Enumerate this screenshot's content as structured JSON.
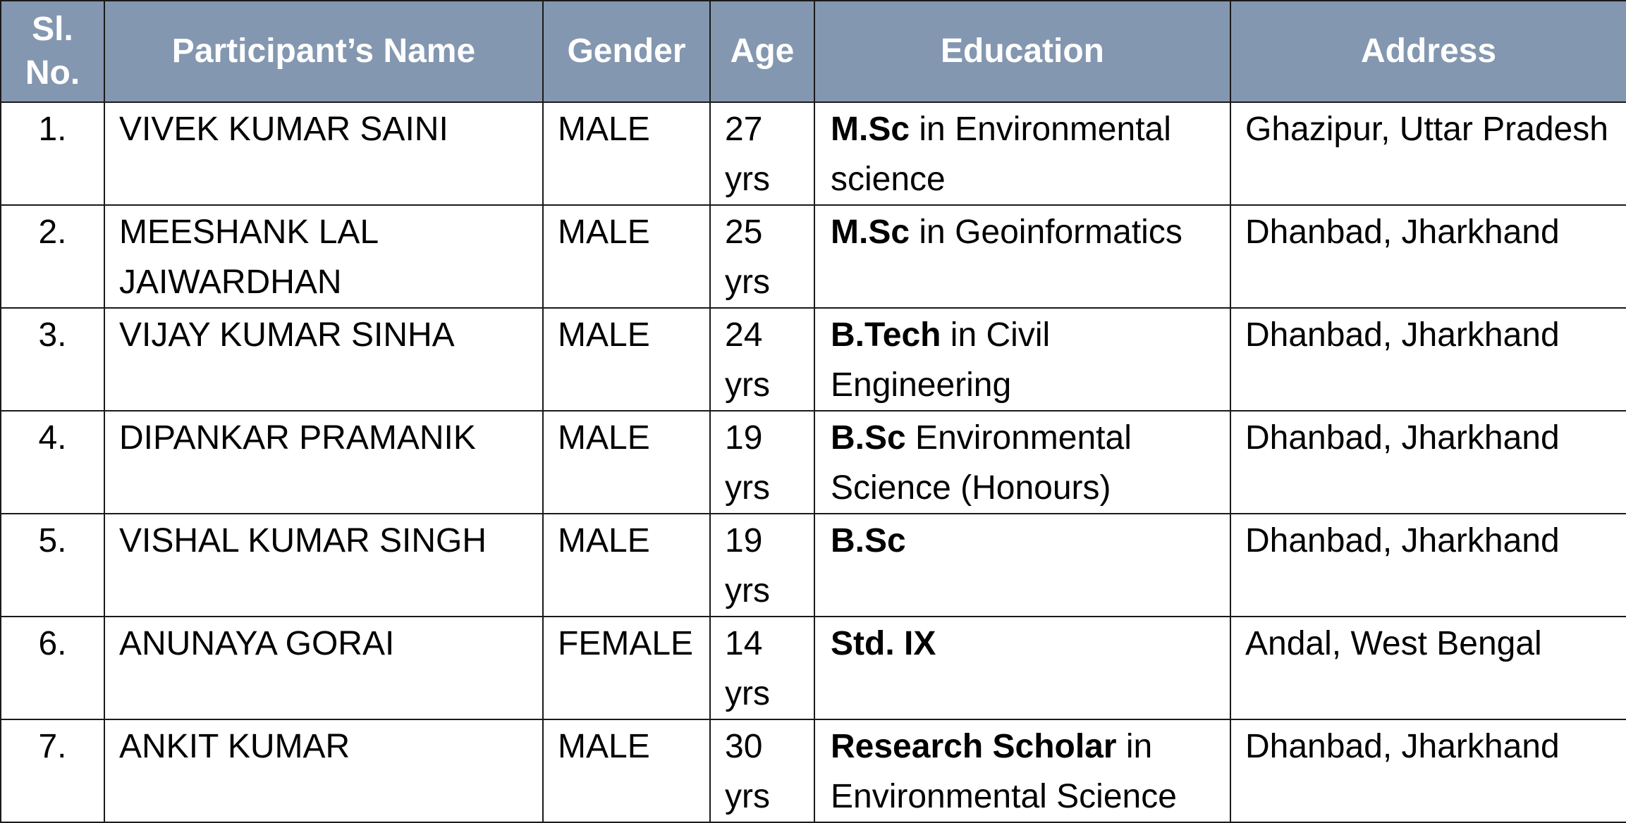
{
  "table": {
    "headers": {
      "sl": "Sl. No.",
      "name": "Participant’s Name",
      "gender": "Gender",
      "age": "Age",
      "education": "Education",
      "address": "Address"
    },
    "rows": [
      {
        "sl": "1.",
        "name": "VIVEK KUMAR SAINI",
        "gender": "MALE",
        "age": "27 yrs",
        "edu_bold": "M.Sc",
        "edu_rest": " in Environmental science",
        "address": "Ghazipur, Uttar Pradesh"
      },
      {
        "sl": "2.",
        "name": "MEESHANK LAL JAIWARDHAN",
        "gender": "MALE",
        "age": "25 yrs",
        "edu_bold": "M.Sc",
        "edu_rest": " in Geoinformatics",
        "address": "Dhanbad, Jharkhand"
      },
      {
        "sl": "3.",
        "name": "VIJAY KUMAR SINHA",
        "gender": "MALE",
        "age": "24 yrs",
        "edu_bold": "B.Tech",
        "edu_rest": " in Civil Engineering",
        "address": "Dhanbad, Jharkhand"
      },
      {
        "sl": "4.",
        "name": "DIPANKAR PRAMANIK",
        "gender": "MALE",
        "age": "19 yrs",
        "edu_bold": "B.Sc",
        "edu_rest": " Environmental Science (Honours)",
        "address": "Dhanbad, Jharkhand"
      },
      {
        "sl": "5.",
        "name": "VISHAL KUMAR SINGH",
        "gender": "MALE",
        "age": "19 yrs",
        "edu_bold": "B.Sc",
        "edu_rest": "",
        "address": "Dhanbad, Jharkhand"
      },
      {
        "sl": "6.",
        "name": "ANUNAYA GORAI",
        "gender": "FEMALE",
        "age": "14 yrs",
        "edu_bold": "Std. IX",
        "edu_rest": "",
        "address": "Andal, West Bengal"
      },
      {
        "sl": "7.",
        "name": "ANKIT KUMAR",
        "gender": "MALE",
        "age": "30 yrs",
        "edu_bold": "Research Scholar",
        "edu_rest": " in Environmental Science",
        "address": "Dhanbad, Jharkhand"
      }
    ]
  }
}
